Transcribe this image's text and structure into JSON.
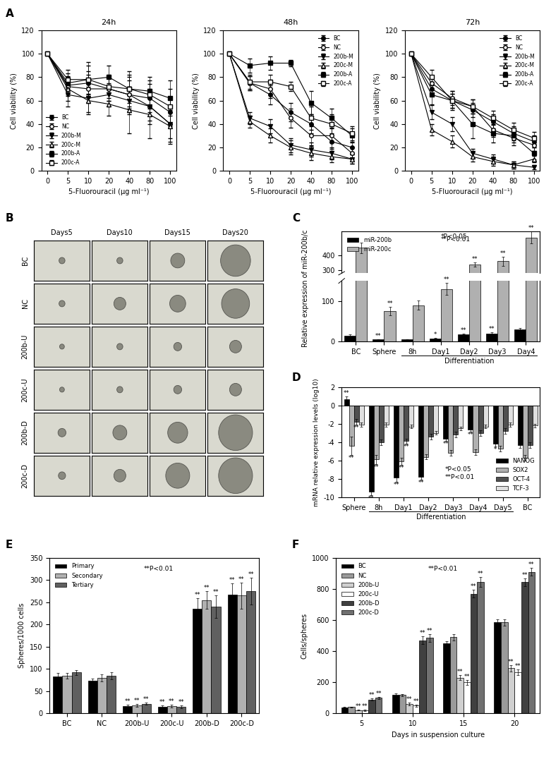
{
  "chart_data": [
    {
      "type": "line",
      "panel_label": "A",
      "title": "24h",
      "x_label": "5-Fluorouracil (μg ml⁻¹)",
      "y_label": "Cell viability (%)",
      "categories": [
        "0",
        "5",
        "10",
        "20",
        "40",
        "80",
        "100"
      ],
      "ylim": [
        0,
        120
      ],
      "yticks": [
        0,
        20,
        40,
        60,
        80,
        100,
        120
      ],
      "legend": "lower left",
      "series": [
        {
          "name": "BC",
          "color": "#000000",
          "marker": "circle",
          "values": [
            100,
            73,
            75,
            70,
            65,
            62,
            50
          ],
          "errors": [
            0,
            8,
            10,
            10,
            12,
            12,
            12
          ]
        },
        {
          "name": "NC",
          "color": "#000000",
          "marker": "circle_open",
          "values": [
            100,
            72,
            70,
            70,
            65,
            55,
            40
          ],
          "errors": [
            0,
            8,
            12,
            10,
            15,
            15,
            15
          ]
        },
        {
          "name": "200b-M",
          "color": "#000000",
          "marker": "triangle_down",
          "values": [
            100,
            65,
            62,
            65,
            60,
            55,
            40
          ],
          "errors": [
            0,
            10,
            12,
            10,
            12,
            12,
            12
          ]
        },
        {
          "name": "200c-M",
          "color": "#000000",
          "marker": "triangle_up_open",
          "values": [
            100,
            70,
            60,
            57,
            52,
            48,
            38
          ],
          "errors": [
            0,
            10,
            12,
            10,
            20,
            20,
            15
          ]
        },
        {
          "name": "200b-A",
          "color": "#000000",
          "marker": "square",
          "values": [
            100,
            75,
            78,
            80,
            70,
            68,
            62
          ],
          "errors": [
            0,
            8,
            15,
            10,
            15,
            12,
            15
          ]
        },
        {
          "name": "200c-A",
          "color": "#000000",
          "marker": "square_open",
          "values": [
            100,
            78,
            78,
            72,
            70,
            65,
            55
          ],
          "errors": [
            0,
            8,
            12,
            10,
            12,
            12,
            15
          ]
        }
      ]
    },
    {
      "type": "line",
      "title": "48h",
      "x_label": "5-Fluorouracil (μg ml⁻¹)",
      "y_label": "Cell viability (%)",
      "categories": [
        "0",
        "5",
        "10",
        "20",
        "40",
        "80",
        "100"
      ],
      "ylim": [
        0,
        120
      ],
      "yticks": [
        0,
        20,
        40,
        60,
        80,
        100,
        120
      ],
      "legend": "upper right",
      "series": [
        {
          "name": "BC",
          "color": "#000000",
          "marker": "circle",
          "values": [
            100,
            75,
            65,
            50,
            40,
            25,
            20
          ],
          "errors": [
            0,
            6,
            8,
            8,
            8,
            6,
            5
          ]
        },
        {
          "name": "NC",
          "color": "#000000",
          "marker": "circle_open",
          "values": [
            100,
            75,
            70,
            45,
            30,
            30,
            15
          ],
          "errors": [
            0,
            6,
            8,
            8,
            8,
            6,
            5
          ]
        },
        {
          "name": "200b-M",
          "color": "#000000",
          "marker": "triangle_down",
          "values": [
            100,
            45,
            38,
            22,
            18,
            15,
            10
          ],
          "errors": [
            0,
            5,
            6,
            6,
            6,
            5,
            4
          ]
        },
        {
          "name": "200c-M",
          "color": "#000000",
          "marker": "triangle_up_open",
          "values": [
            100,
            42,
            30,
            20,
            15,
            12,
            10
          ],
          "errors": [
            0,
            5,
            6,
            6,
            6,
            5,
            4
          ]
        },
        {
          "name": "200b-A",
          "color": "#000000",
          "marker": "square",
          "values": [
            100,
            90,
            92,
            92,
            58,
            45,
            30
          ],
          "errors": [
            0,
            6,
            6,
            3,
            10,
            8,
            6
          ]
        },
        {
          "name": "200c-A",
          "color": "#000000",
          "marker": "square_open",
          "values": [
            100,
            76,
            76,
            72,
            45,
            40,
            32
          ],
          "errors": [
            0,
            6,
            6,
            4,
            10,
            8,
            6
          ]
        }
      ]
    },
    {
      "type": "line",
      "title": "72h",
      "x_label": "5-Fluorouracil (μg ml⁻¹)",
      "y_label": "Cell viability (%)",
      "categories": [
        "0",
        "5",
        "10",
        "20",
        "40",
        "80",
        "100"
      ],
      "ylim": [
        0,
        120
      ],
      "yticks": [
        0,
        20,
        40,
        60,
        80,
        100,
        120
      ],
      "legend": "upper right",
      "series": [
        {
          "name": "BC",
          "color": "#000000",
          "marker": "circle",
          "values": [
            100,
            70,
            60,
            52,
            42,
            32,
            25
          ],
          "errors": [
            0,
            6,
            6,
            6,
            6,
            6,
            5
          ]
        },
        {
          "name": "NC",
          "color": "#000000",
          "marker": "circle_open",
          "values": [
            100,
            75,
            62,
            55,
            35,
            28,
            22
          ],
          "errors": [
            0,
            6,
            6,
            6,
            6,
            6,
            5
          ]
        },
        {
          "name": "200b-M",
          "color": "#000000",
          "marker": "triangle_down",
          "values": [
            100,
            50,
            40,
            15,
            10,
            5,
            3
          ],
          "errors": [
            0,
            6,
            6,
            4,
            4,
            3,
            2
          ]
        },
        {
          "name": "200c-M",
          "color": "#000000",
          "marker": "triangle_up_open",
          "values": [
            100,
            35,
            25,
            12,
            8,
            5,
            10
          ],
          "errors": [
            0,
            5,
            5,
            4,
            4,
            3,
            3
          ]
        },
        {
          "name": "200b-A",
          "color": "#000000",
          "marker": "square",
          "values": [
            100,
            65,
            60,
            40,
            32,
            30,
            15
          ],
          "errors": [
            0,
            8,
            8,
            12,
            8,
            6,
            5
          ]
        },
        {
          "name": "200c-A",
          "color": "#000000",
          "marker": "square_open",
          "values": [
            100,
            80,
            60,
            55,
            45,
            35,
            28
          ],
          "errors": [
            0,
            6,
            6,
            6,
            6,
            6,
            5
          ]
        }
      ]
    },
    {
      "type": "image_grid",
      "panel_label": "B",
      "columns": [
        "Days5",
        "Days10",
        "Days15",
        "Days20"
      ],
      "rows": [
        "BC",
        "NC",
        "200b-U",
        "200c-U",
        "200b-D",
        "200c-D"
      ],
      "sphere_size": [
        [
          0.15,
          0.15,
          0.35,
          0.75
        ],
        [
          0.15,
          0.3,
          0.4,
          0.7
        ],
        [
          0.12,
          0.15,
          0.2,
          0.3
        ],
        [
          0.12,
          0.15,
          0.2,
          0.3
        ],
        [
          0.2,
          0.35,
          0.5,
          0.85
        ],
        [
          0.18,
          0.3,
          0.6,
          0.85
        ]
      ]
    },
    {
      "type": "bar",
      "panel_label": "C",
      "y_label": "Relative expression of miR-200b/c",
      "categories": [
        "BC",
        "Sphere",
        "8h",
        "Day1",
        "Day2",
        "Day3",
        "Day4"
      ],
      "group": {
        "label": "Differentiation",
        "from": "8h",
        "to": "Day4"
      },
      "segments": [
        {
          "ylim": [
            0,
            150
          ],
          "yticks": [
            0,
            100
          ]
        },
        {
          "ylim": [
            280,
            560
          ],
          "yticks": [
            300,
            400
          ]
        }
      ],
      "legend": "upper left",
      "notes": [
        "*P<0.05",
        "**P<0.01"
      ],
      "series": [
        {
          "name": "miR-200b",
          "color": "#000000",
          "values": [
            15,
            5,
            5,
            8,
            17,
            20,
            30
          ],
          "errors": [
            2,
            1,
            1,
            1,
            3,
            3,
            4
          ],
          "significance": [
            null,
            "**",
            null,
            "*",
            "**",
            "**",
            null
          ]
        },
        {
          "name": "miR-200c",
          "color": "#b0b0b0",
          "values": [
            450,
            75,
            90,
            130,
            340,
            360,
            520
          ],
          "errors": [
            35,
            10,
            12,
            15,
            15,
            30,
            40
          ],
          "significance": [
            null,
            "**",
            null,
            "**",
            "**",
            "**",
            "**"
          ]
        }
      ]
    },
    {
      "type": "bar",
      "panel_label": "D",
      "y_label": "mRNA relative expression levels (log10)",
      "categories": [
        "Sphere",
        "8h",
        "Day1",
        "Day2",
        "Day3",
        "Day4",
        "Day5",
        "BC"
      ],
      "group": {
        "label": "Differentiation",
        "from": "8h",
        "to": "Day5"
      },
      "ylim": [
        -10,
        2
      ],
      "yticks": [
        -10,
        -8,
        -6,
        -4,
        -2,
        0,
        2
      ],
      "legend": "lower right",
      "notes": [
        "*P<0.05",
        "**P<0.01"
      ],
      "series": [
        {
          "name": "NANOG",
          "color": "#000000",
          "values": [
            0.7,
            -9.4,
            -7.9,
            -7.8,
            -3.6,
            -2.6,
            -4.2,
            -4.3
          ],
          "errors": [
            0.3,
            0.4,
            0.4,
            0.3,
            0.3,
            0.3,
            0.3,
            0.3
          ],
          "significance": [
            "**",
            "**",
            "**",
            "**",
            "**",
            "**",
            "*",
            null
          ]
        },
        {
          "name": "SOX2",
          "color": "#b0b0b0",
          "values": [
            -4.4,
            -5.9,
            -6.1,
            -5.6,
            -5.2,
            -5.1,
            -4.7,
            -5.7
          ],
          "errors": [
            1.0,
            0.5,
            0.4,
            0.3,
            0.3,
            0.3,
            0.3,
            0.3
          ],
          "significance": [
            "**",
            "**",
            "**",
            null,
            null,
            null,
            null,
            null
          ]
        },
        {
          "name": "OCT-4",
          "color": "#505050",
          "values": [
            -1.8,
            -4.0,
            -3.9,
            -3.4,
            -3.2,
            -3.0,
            -2.8,
            -4.3
          ],
          "errors": [
            0.3,
            0.3,
            0.3,
            0.3,
            0.3,
            0.3,
            0.3,
            0.3
          ],
          "significance": [
            "**",
            null,
            "**",
            null,
            null,
            null,
            null,
            null
          ]
        },
        {
          "name": "TCF-3",
          "color": "#e0e0e0",
          "values": [
            -2.1,
            -2.1,
            -2.3,
            -3.0,
            -2.5,
            -2.3,
            -2.1,
            -2.2
          ],
          "errors": [
            0.2,
            0.2,
            0.2,
            0.2,
            0.2,
            0.2,
            0.2,
            0.2
          ],
          "significance": [
            null,
            null,
            null,
            null,
            null,
            null,
            null,
            null
          ]
        }
      ]
    },
    {
      "type": "bar",
      "panel_label": "E",
      "y_label": "Spheres/1000 cells",
      "categories": [
        "BC",
        "NC",
        "200b-U",
        "200c-U",
        "200b-D",
        "200c-D"
      ],
      "ylim": [
        0,
        350
      ],
      "yticks": [
        0,
        50,
        100,
        150,
        200,
        250,
        300,
        350
      ],
      "legend": "upper left",
      "notes": [
        "**P<0.01"
      ],
      "series": [
        {
          "name": "Primary",
          "color": "#000000",
          "values": [
            83,
            73,
            17,
            15,
            235,
            268
          ],
          "errors": [
            8,
            5,
            3,
            3,
            25,
            25
          ],
          "significance": [
            null,
            null,
            "**",
            "**",
            "**",
            "**"
          ]
        },
        {
          "name": "Secondary",
          "color": "#b0b0b0",
          "values": [
            85,
            80,
            18,
            17,
            255,
            265
          ],
          "errors": [
            6,
            8,
            3,
            3,
            20,
            30
          ],
          "significance": [
            null,
            null,
            "**",
            "**",
            "**",
            "**"
          ]
        },
        {
          "name": "Tertiary",
          "color": "#606060",
          "values": [
            92,
            85,
            22,
            15,
            240,
            275
          ],
          "errors": [
            5,
            8,
            3,
            3,
            25,
            30
          ],
          "significance": [
            null,
            null,
            "**",
            "**",
            "**",
            "**"
          ]
        }
      ]
    },
    {
      "type": "bar",
      "panel_label": "F",
      "y_label": "Cells/spheres",
      "x_label": "Days in suspension culture",
      "categories": [
        "5",
        "10",
        "15",
        "20"
      ],
      "ylim": [
        0,
        1000
      ],
      "yticks": [
        0,
        200,
        400,
        600,
        800,
        1000
      ],
      "legend": "upper left",
      "notes": [
        "**P<0.01"
      ],
      "series": [
        {
          "name": "BC",
          "color": "#000000",
          "values": [
            40,
            120,
            450,
            585
          ],
          "errors": [
            3,
            8,
            15,
            20
          ],
          "significance": [
            null,
            null,
            null,
            null
          ]
        },
        {
          "name": "NC",
          "color": "#9a9a9a",
          "values": [
            42,
            118,
            490,
            585
          ],
          "errors": [
            3,
            8,
            20,
            20
          ],
          "significance": [
            null,
            null,
            null,
            null
          ]
        },
        {
          "name": "200b-U",
          "color": "#d0d0d0",
          "values": [
            22,
            60,
            230,
            290
          ],
          "errors": [
            3,
            8,
            15,
            20
          ],
          "significance": [
            "**",
            "**",
            "**",
            "**"
          ]
        },
        {
          "name": "200c-U",
          "color": "#ffffff",
          "values": [
            20,
            50,
            200,
            265
          ],
          "errors": [
            3,
            8,
            15,
            20
          ],
          "significance": [
            "**",
            "**",
            "**",
            "**"
          ]
        },
        {
          "name": "200b-D",
          "color": "#404040",
          "values": [
            90,
            470,
            770,
            845
          ],
          "errors": [
            8,
            25,
            25,
            25
          ],
          "significance": [
            "**",
            "**",
            "**",
            "**"
          ]
        },
        {
          "name": "200c-D",
          "color": "#707070",
          "values": [
            100,
            485,
            845,
            910
          ],
          "errors": [
            8,
            25,
            30,
            25
          ],
          "significance": [
            "**",
            "**",
            "**",
            "**"
          ]
        }
      ]
    }
  ]
}
